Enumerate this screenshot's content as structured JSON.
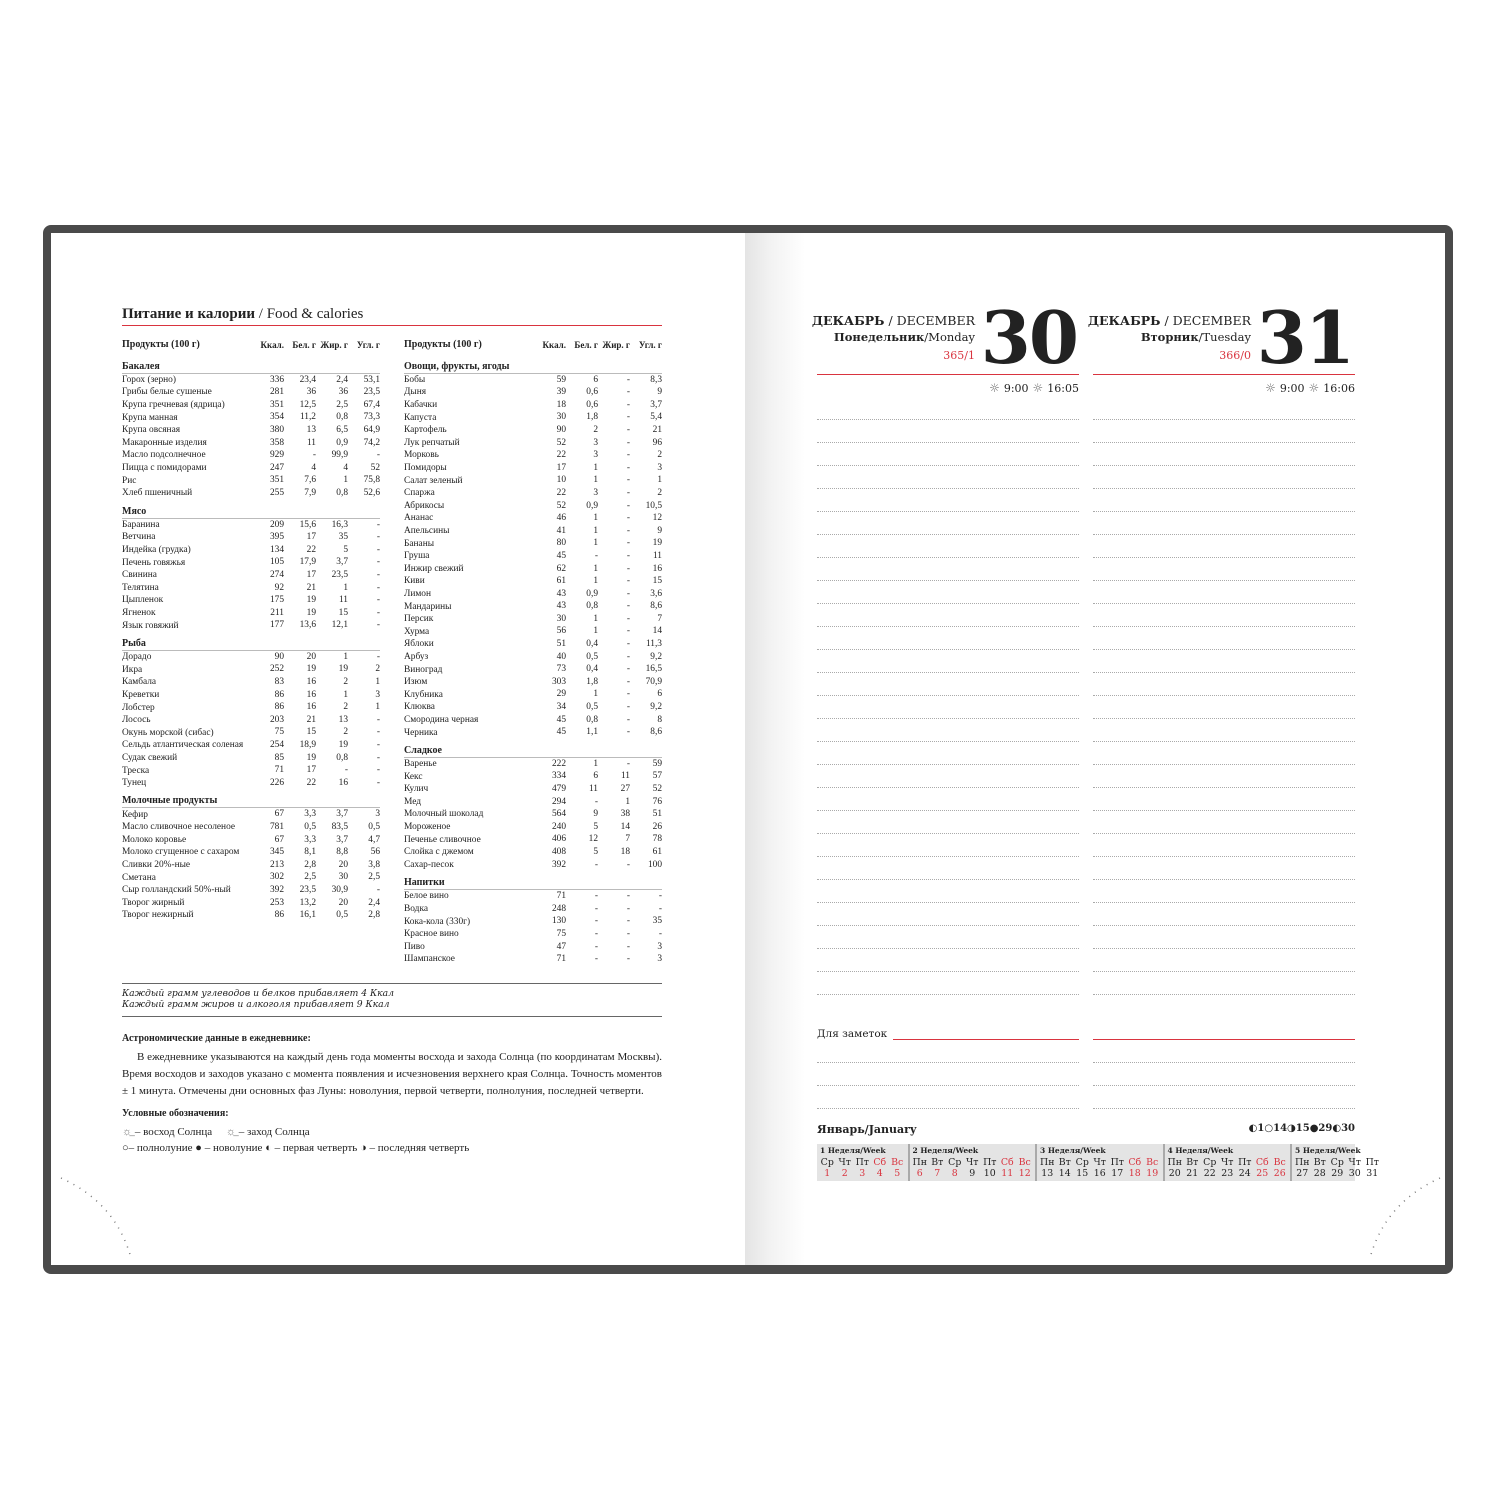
{
  "left": {
    "title_ru": "Питание и калории",
    "title_en": " / Food & calories",
    "header": [
      "Продукты (100 г)",
      "Ккал.",
      "Бел. г",
      "Жир. г",
      "Угл. г"
    ],
    "col1": [
      {
        "name": "Бакалея",
        "rows": [
          [
            "Горох (зерно)",
            "336",
            "23,4",
            "2,4",
            "53,1"
          ],
          [
            "Грибы белые сушеные",
            "281",
            "36",
            "36",
            "23,5"
          ],
          [
            "Крупа гречневая (ядрица)",
            "351",
            "12,5",
            "2,5",
            "67,4"
          ],
          [
            "Крупа манная",
            "354",
            "11,2",
            "0,8",
            "73,3"
          ],
          [
            "Крупа овсяная",
            "380",
            "13",
            "6,5",
            "64,9"
          ],
          [
            "Макаронные изделия",
            "358",
            "11",
            "0,9",
            "74,2"
          ],
          [
            "Масло подсолнечное",
            "929",
            "-",
            "99,9",
            "-"
          ],
          [
            "Пицца с помидорами",
            "247",
            "4",
            "4",
            "52"
          ],
          [
            "Рис",
            "351",
            "7,6",
            "1",
            "75,8"
          ],
          [
            "Хлеб пшеничный",
            "255",
            "7,9",
            "0,8",
            "52,6"
          ]
        ]
      },
      {
        "name": "Мясо",
        "rows": [
          [
            "Баранина",
            "209",
            "15,6",
            "16,3",
            "-"
          ],
          [
            "Ветчина",
            "395",
            "17",
            "35",
            "-"
          ],
          [
            "Индейка (грудка)",
            "134",
            "22",
            "5",
            "-"
          ],
          [
            "Печень говяжья",
            "105",
            "17,9",
            "3,7",
            "-"
          ],
          [
            "Свинина",
            "274",
            "17",
            "23,5",
            "-"
          ],
          [
            "Телятина",
            "92",
            "21",
            "1",
            "-"
          ],
          [
            "Цыпленок",
            "175",
            "19",
            "11",
            "-"
          ],
          [
            "Ягненок",
            "211",
            "19",
            "15",
            "-"
          ],
          [
            "Язык говяжий",
            "177",
            "13,6",
            "12,1",
            "-"
          ]
        ]
      },
      {
        "name": "Рыба",
        "rows": [
          [
            "Дорадо",
            "90",
            "20",
            "1",
            "-"
          ],
          [
            "Икра",
            "252",
            "19",
            "19",
            "2"
          ],
          [
            "Камбала",
            "83",
            "16",
            "2",
            "1"
          ],
          [
            "Креветки",
            "86",
            "16",
            "1",
            "3"
          ],
          [
            "Лобстер",
            "86",
            "16",
            "2",
            "1"
          ],
          [
            "Лосось",
            "203",
            "21",
            "13",
            "-"
          ],
          [
            "Окунь морской (сибас)",
            "75",
            "15",
            "2",
            "-"
          ],
          [
            "Сельдь атлантическая соленая",
            "254",
            "18,9",
            "19",
            "-"
          ],
          [
            "Судак свежий",
            "85",
            "19",
            "0,8",
            "-"
          ],
          [
            "Треска",
            "71",
            "17",
            "-",
            "-"
          ],
          [
            "Тунец",
            "226",
            "22",
            "16",
            "-"
          ]
        ]
      },
      {
        "name": "Молочные продукты",
        "rows": [
          [
            "Кефир",
            "67",
            "3,3",
            "3,7",
            "3"
          ],
          [
            "Масло сливочное несоленое",
            "781",
            "0,5",
            "83,5",
            "0,5"
          ],
          [
            "Молоко коровье",
            "67",
            "3,3",
            "3,7",
            "4,7"
          ],
          [
            "Молоко сгущенное с сахаром",
            "345",
            "8,1",
            "8,8",
            "56"
          ],
          [
            "Сливки 20%-ные",
            "213",
            "2,8",
            "20",
            "3,8"
          ],
          [
            "Сметана",
            "302",
            "2,5",
            "30",
            "2,5"
          ],
          [
            "Сыр голландский 50%-ный",
            "392",
            "23,5",
            "30,9",
            "-"
          ],
          [
            "Творог жирный",
            "253",
            "13,2",
            "20",
            "2,4"
          ],
          [
            "Творог нежирный",
            "86",
            "16,1",
            "0,5",
            "2,8"
          ]
        ]
      }
    ],
    "col2": [
      {
        "name": "Овощи, фрукты, ягоды",
        "rows": [
          [
            "Бобы",
            "59",
            "6",
            "-",
            "8,3"
          ],
          [
            "Дыня",
            "39",
            "0,6",
            "-",
            "9"
          ],
          [
            "Кабачки",
            "18",
            "0,6",
            "-",
            "3,7"
          ],
          [
            "Капуста",
            "30",
            "1,8",
            "-",
            "5,4"
          ],
          [
            "Картофель",
            "90",
            "2",
            "-",
            "21"
          ],
          [
            "Лук репчатый",
            "52",
            "3",
            "-",
            "96"
          ],
          [
            "Морковь",
            "22",
            "3",
            "-",
            "2"
          ],
          [
            "Помидоры",
            "17",
            "1",
            "-",
            "3"
          ],
          [
            "Салат зеленый",
            "10",
            "1",
            "-",
            "1"
          ],
          [
            "Спаржа",
            "22",
            "3",
            "-",
            "2"
          ],
          [
            "Абрикосы",
            "52",
            "0,9",
            "-",
            "10,5"
          ],
          [
            "Ананас",
            "46",
            "1",
            "-",
            "12"
          ],
          [
            "Апельсины",
            "41",
            "1",
            "-",
            "9"
          ],
          [
            "Бананы",
            "80",
            "1",
            "-",
            "19"
          ],
          [
            "Груша",
            "45",
            "-",
            "-",
            "11"
          ],
          [
            "Инжир свежий",
            "62",
            "1",
            "-",
            "16"
          ],
          [
            "Киви",
            "61",
            "1",
            "-",
            "15"
          ],
          [
            "Лимон",
            "43",
            "0,9",
            "-",
            "3,6"
          ],
          [
            "Мандарины",
            "43",
            "0,8",
            "-",
            "8,6"
          ],
          [
            "Персик",
            "30",
            "1",
            "-",
            "7"
          ],
          [
            "Хурма",
            "56",
            "1",
            "-",
            "14"
          ],
          [
            "Яблоки",
            "51",
            "0,4",
            "-",
            "11,3"
          ],
          [
            "Арбуз",
            "40",
            "0,5",
            "-",
            "9,2"
          ],
          [
            "Виноград",
            "73",
            "0,4",
            "-",
            "16,5"
          ],
          [
            "Изюм",
            "303",
            "1,8",
            "-",
            "70,9"
          ],
          [
            "Клубника",
            "29",
            "1",
            "-",
            "6"
          ],
          [
            "Клюква",
            "34",
            "0,5",
            "-",
            "9,2"
          ],
          [
            "Смородина черная",
            "45",
            "0,8",
            "-",
            "8"
          ],
          [
            "Черника",
            "45",
            "1,1",
            "-",
            "8,6"
          ]
        ]
      },
      {
        "name": "Сладкое",
        "rows": [
          [
            "Варенье",
            "222",
            "1",
            "-",
            "59"
          ],
          [
            "Кекс",
            "334",
            "6",
            "11",
            "57"
          ],
          [
            "Кулич",
            "479",
            "11",
            "27",
            "52"
          ],
          [
            "Мед",
            "294",
            "-",
            "1",
            "76"
          ],
          [
            "Молочный шоколад",
            "564",
            "9",
            "38",
            "51"
          ],
          [
            "Мороженое",
            "240",
            "5",
            "14",
            "26"
          ],
          [
            "Печенье сливочное",
            "406",
            "12",
            "7",
            "78"
          ],
          [
            "Слойка с джемом",
            "408",
            "5",
            "18",
            "61"
          ],
          [
            "Сахар-песок",
            "392",
            "-",
            "-",
            "100"
          ]
        ]
      },
      {
        "name": "Напитки",
        "rows": [
          [
            "Белое вино",
            "71",
            "-",
            "-",
            "-"
          ],
          [
            "Водка",
            "248",
            "-",
            "-",
            "-"
          ],
          [
            "Кока-кола (330г)",
            "130",
            "-",
            "-",
            "35"
          ],
          [
            "Красное вино",
            "75",
            "-",
            "-",
            "-"
          ],
          [
            "Пиво",
            "47",
            "-",
            "-",
            "3"
          ],
          [
            "Шампанское",
            "71",
            "-",
            "-",
            "3"
          ]
        ]
      }
    ],
    "note1": "Каждый грамм углеводов и белков прибавляет 4 Ккал",
    "note2": "Каждый грамм жиров и алкоголя прибавляет 9 Ккал",
    "astro_title": "Астрономические данные в ежедневнике:",
    "astro_text": "В ежедневнике указываются на каждый день года моменты восхода и захода Солнца (по координатам Москвы). Время восходов и заходов указано с момента появления и исчезновения верхнего края Солнца. Точность моментов ± 1 минута. Отмечены дни основных фаз Луны: новолуния, первой четверти, полнолуния, последней четверти.",
    "legend_title": "Условные обозначения:",
    "legend": {
      "sunrise": "– восход Солнца",
      "sunset": "– заход Солнца",
      "full": "– полнолуние",
      "new": "– новолуние",
      "first": "– первая четверть",
      "last": "– последняя четверть"
    }
  },
  "days": [
    {
      "month_ru": "ДЕКАБРЬ",
      "month_en": " / DECEMBER",
      "weekday_ru": "Понедельник",
      "weekday_en": "/Monday",
      "count": "365/1",
      "day": "30",
      "sunrise": "9:00",
      "sunset": "16:05"
    },
    {
      "month_ru": "ДЕКАБРЬ",
      "month_en": " / DECEMBER",
      "weekday_ru": "Вторник",
      "weekday_en": "/Tuesday",
      "count": "366/0",
      "day": "31",
      "sunrise": "9:00",
      "sunset": "16:06"
    }
  ],
  "notes_label": "Для заметок",
  "calendar": {
    "month": "Январь/January",
    "moon": [
      {
        "icon": "first-quarter",
        "d": "1"
      },
      {
        "icon": "full-moon",
        "d": "14"
      },
      {
        "icon": "last-quarter",
        "d": "15"
      },
      {
        "icon": "new-moon",
        "d": "29"
      },
      {
        "icon": "first-quarter",
        "d": "30"
      }
    ],
    "week_label": "Неделя/Week",
    "weeks": [
      {
        "n": "1",
        "days": [
          [
            "Ср",
            "1",
            1
          ],
          [
            "Чт",
            "2",
            1
          ],
          [
            "Пт",
            "3",
            1
          ],
          [
            "Сб",
            "4",
            1
          ],
          [
            "Вс",
            "5",
            1
          ]
        ]
      },
      {
        "n": "2",
        "days": [
          [
            "Пн",
            "6",
            1
          ],
          [
            "Вт",
            "7",
            1
          ],
          [
            "Ср",
            "8",
            1
          ],
          [
            "Чт",
            "9",
            0
          ],
          [
            "Пт",
            "10",
            0
          ],
          [
            "Сб",
            "11",
            1
          ],
          [
            "Вс",
            "12",
            1
          ]
        ]
      },
      {
        "n": "3",
        "days": [
          [
            "Пн",
            "13",
            0
          ],
          [
            "Вт",
            "14",
            0
          ],
          [
            "Ср",
            "15",
            0
          ],
          [
            "Чт",
            "16",
            0
          ],
          [
            "Пт",
            "17",
            0
          ],
          [
            "Сб",
            "18",
            1
          ],
          [
            "Вс",
            "19",
            1
          ]
        ]
      },
      {
        "n": "4",
        "days": [
          [
            "Пн",
            "20",
            0
          ],
          [
            "Вт",
            "21",
            0
          ],
          [
            "Ср",
            "22",
            0
          ],
          [
            "Чт",
            "23",
            0
          ],
          [
            "Пт",
            "24",
            0
          ],
          [
            "Сб",
            "25",
            1
          ],
          [
            "Вс",
            "26",
            1
          ]
        ]
      },
      {
        "n": "5",
        "days": [
          [
            "Пн",
            "27",
            0
          ],
          [
            "Вт",
            "28",
            0
          ],
          [
            "Ср",
            "29",
            0
          ],
          [
            "Чт",
            "30",
            0
          ],
          [
            "Пт",
            "31",
            0
          ]
        ]
      }
    ]
  },
  "colors": {
    "accent": "#d9343f",
    "cover": "#4a4a4a"
  }
}
